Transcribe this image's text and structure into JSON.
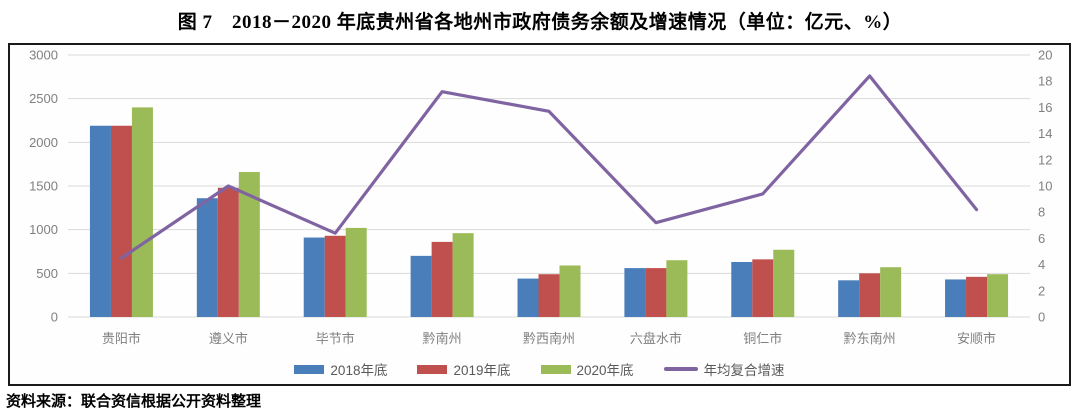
{
  "title": "图 7　2018－2020 年底贵州省各地州市政府债务余额及增速情况（单位：亿元、%）",
  "source_note": "资料来源：联合资信根据公开资料整理",
  "colors": {
    "bar_2018": "#4A7EBB",
    "bar_2019": "#C0504D",
    "bar_2020": "#9BBB59",
    "line_cagr": "#8064A2",
    "gridline": "#D9D9D9",
    "axis_label": "#808080",
    "legend_text": "#595959",
    "frame_border": "#1A1A1A"
  },
  "chart_data": {
    "type": "bar",
    "subtype": "grouped-bars-with-line",
    "title": "图 7　2018－2020 年底贵州省各地州市政府债务余额及增速情况（单位：亿元、%）",
    "categories": [
      "贵阳市",
      "遵义市",
      "毕节市",
      "黔南州",
      "黔西南州",
      "六盘水市",
      "铜仁市",
      "黔东南州",
      "安顺市"
    ],
    "series": [
      {
        "name": "2018年底",
        "kind": "bar",
        "axis": "left",
        "color": "#4A7EBB",
        "values": [
          2190,
          1360,
          910,
          700,
          440,
          560,
          630,
          420,
          430
        ]
      },
      {
        "name": "2019年底",
        "kind": "bar",
        "axis": "left",
        "color": "#C0504D",
        "values": [
          2190,
          1480,
          930,
          860,
          490,
          560,
          660,
          500,
          460
        ]
      },
      {
        "name": "2020年底",
        "kind": "bar",
        "axis": "left",
        "color": "#9BBB59",
        "values": [
          2400,
          1660,
          1020,
          960,
          590,
          650,
          770,
          570,
          490
        ]
      },
      {
        "name": "年均复合增速",
        "kind": "line",
        "axis": "right",
        "color": "#8064A2",
        "values": [
          4.5,
          10.0,
          6.4,
          17.2,
          15.7,
          7.2,
          9.4,
          18.4,
          8.2
        ]
      }
    ],
    "left_axis": {
      "min": 0,
      "max": 3000,
      "step": 500,
      "ticks": [
        0,
        500,
        1000,
        1500,
        2000,
        2500,
        3000
      ],
      "unit": "亿元"
    },
    "right_axis": {
      "min": 0,
      "max": 20,
      "step": 2,
      "ticks": [
        0,
        2,
        4,
        6,
        8,
        10,
        12,
        14,
        16,
        18,
        20
      ],
      "unit": "%"
    },
    "grid": true,
    "legend_position": "bottom",
    "legend_entries": [
      "2018年底",
      "2019年底",
      "2020年底",
      "年均复合增速"
    ]
  }
}
